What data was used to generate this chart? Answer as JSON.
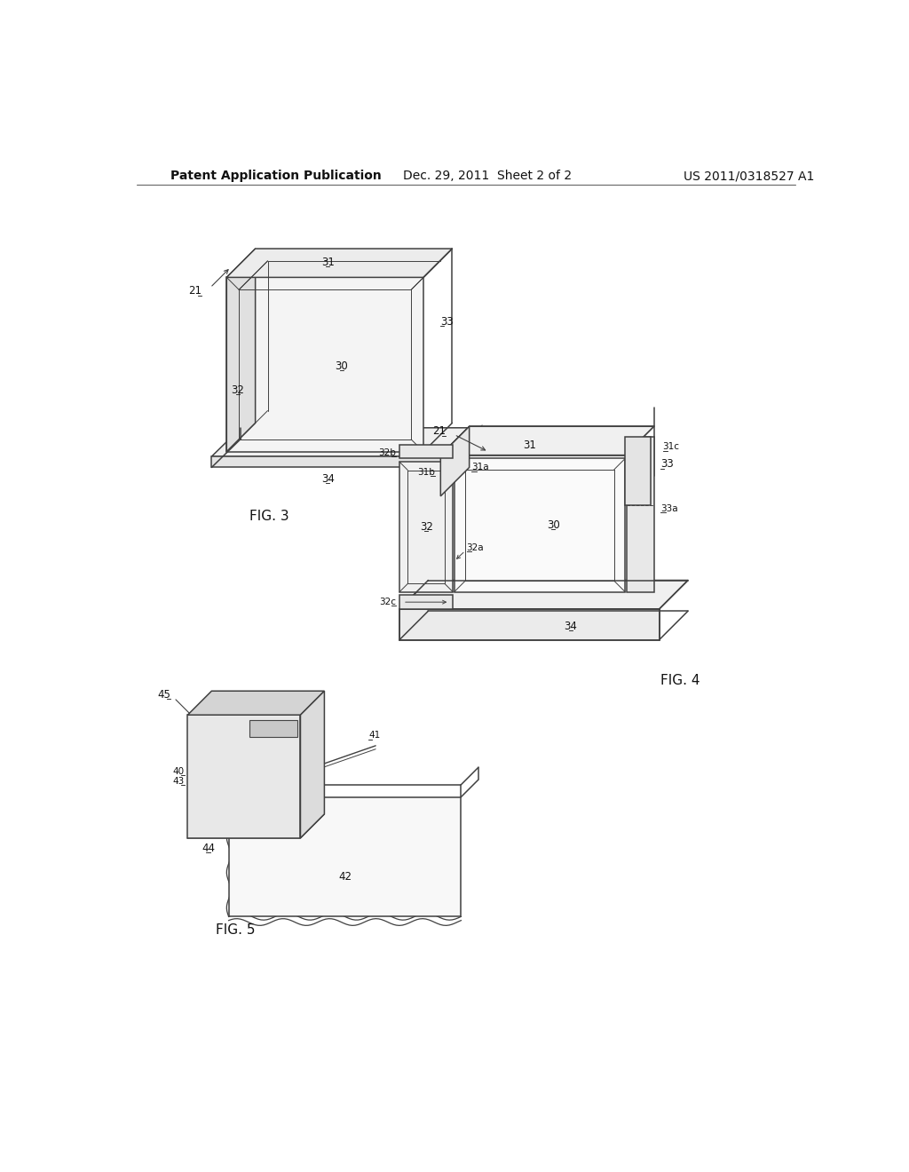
{
  "background_color": "#ffffff",
  "header_left": "Patent Application Publication",
  "header_center": "Dec. 29, 2011  Sheet 2 of 2",
  "header_right": "US 2011/0318527 A1",
  "header_fontsize": 10,
  "fig3_label": "FIG. 3",
  "fig4_label": "FIG. 4",
  "fig5_label": "FIG. 5",
  "line_color": "#404040",
  "line_width": 1.1,
  "label_fontsize": 8.5,
  "fig_label_fontsize": 11
}
